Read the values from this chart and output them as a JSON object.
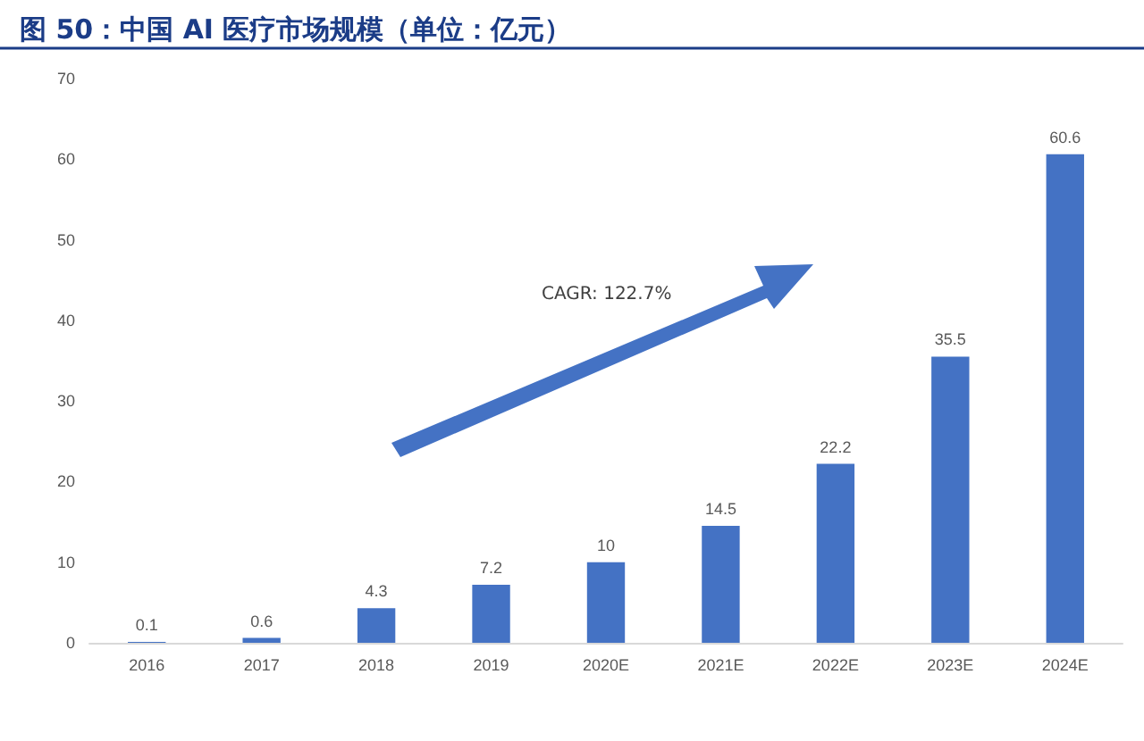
{
  "chart_data": {
    "type": "bar",
    "title": "图 50：中国 AI 医疗市场规模（单位：亿元）",
    "categories": [
      "2016",
      "2017",
      "2018",
      "2019",
      "2020E",
      "2021E",
      "2022E",
      "2023E",
      "2024E"
    ],
    "values": [
      0.1,
      0.6,
      4.3,
      7.2,
      10,
      14.5,
      22.2,
      35.5,
      60.6
    ],
    "color": "#4472c4",
    "ylim": [
      0,
      70
    ],
    "yticks": [
      0,
      10,
      20,
      30,
      40,
      50,
      60,
      70
    ],
    "grid": false,
    "data_labels": true,
    "annotations": [
      "CAGR: 122.7%"
    ]
  }
}
